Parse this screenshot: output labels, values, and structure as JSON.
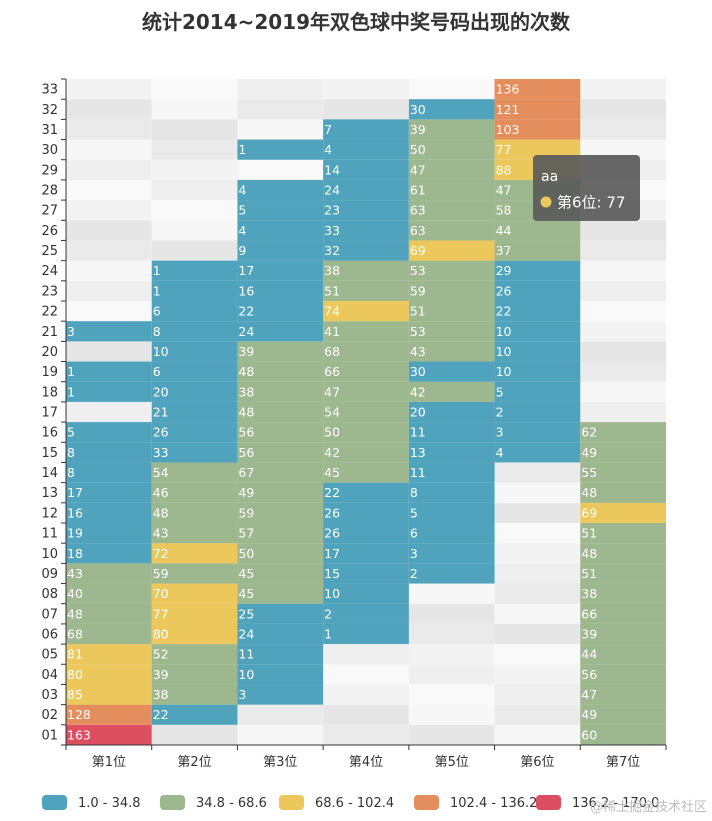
{
  "chart_data": {
    "type": "heatmap",
    "title": "统计2014~2019年双色球中奖号码出现的次数",
    "x_categories": [
      "第1位",
      "第2位",
      "第3位",
      "第4位",
      "第5位",
      "第6位",
      "第7位"
    ],
    "y_categories": [
      "01",
      "02",
      "03",
      "04",
      "05",
      "06",
      "07",
      "08",
      "09",
      "10",
      "11",
      "12",
      "13",
      "14",
      "15",
      "16",
      "17",
      "18",
      "19",
      "20",
      "21",
      "22",
      "23",
      "24",
      "25",
      "26",
      "27",
      "28",
      "29",
      "30",
      "31",
      "32",
      "33"
    ],
    "columns": [
      {
        "name": "第1位",
        "cells": [
          [
            1,
            163
          ],
          [
            2,
            128
          ],
          [
            3,
            85
          ],
          [
            4,
            80
          ],
          [
            5,
            81
          ],
          [
            6,
            68
          ],
          [
            7,
            48
          ],
          [
            8,
            40
          ],
          [
            9,
            43
          ],
          [
            10,
            18
          ],
          [
            11,
            19
          ],
          [
            12,
            16
          ],
          [
            13,
            17
          ],
          [
            14,
            8
          ],
          [
            15,
            8
          ],
          [
            16,
            5
          ],
          [
            18,
            1
          ],
          [
            19,
            1
          ],
          [
            21,
            3
          ]
        ]
      },
      {
        "name": "第2位",
        "cells": [
          [
            2,
            22
          ],
          [
            3,
            38
          ],
          [
            4,
            39
          ],
          [
            5,
            52
          ],
          [
            6,
            80
          ],
          [
            7,
            77
          ],
          [
            8,
            70
          ],
          [
            9,
            59
          ],
          [
            10,
            72
          ],
          [
            11,
            43
          ],
          [
            12,
            48
          ],
          [
            13,
            46
          ],
          [
            14,
            54
          ],
          [
            15,
            33
          ],
          [
            16,
            26
          ],
          [
            17,
            21
          ],
          [
            18,
            20
          ],
          [
            19,
            6
          ],
          [
            20,
            10
          ],
          [
            21,
            8
          ],
          [
            22,
            6
          ],
          [
            23,
            1
          ],
          [
            24,
            1
          ]
        ]
      },
      {
        "name": "第3位",
        "cells": [
          [
            3,
            3
          ],
          [
            4,
            10
          ],
          [
            5,
            11
          ],
          [
            6,
            24
          ],
          [
            7,
            25
          ],
          [
            8,
            45
          ],
          [
            9,
            45
          ],
          [
            10,
            50
          ],
          [
            11,
            57
          ],
          [
            12,
            59
          ],
          [
            13,
            49
          ],
          [
            14,
            67
          ],
          [
            15,
            56
          ],
          [
            16,
            56
          ],
          [
            17,
            48
          ],
          [
            18,
            38
          ],
          [
            19,
            48
          ],
          [
            20,
            39
          ],
          [
            21,
            24
          ],
          [
            22,
            22
          ],
          [
            23,
            16
          ],
          [
            24,
            17
          ],
          [
            25,
            9
          ],
          [
            26,
            4
          ],
          [
            27,
            5
          ],
          [
            28,
            4
          ],
          [
            30,
            1
          ]
        ]
      },
      {
        "name": "第4位",
        "cells": [
          [
            6,
            1
          ],
          [
            7,
            2
          ],
          [
            8,
            10
          ],
          [
            9,
            15
          ],
          [
            10,
            17
          ],
          [
            11,
            26
          ],
          [
            12,
            26
          ],
          [
            13,
            22
          ],
          [
            14,
            45
          ],
          [
            15,
            42
          ],
          [
            16,
            50
          ],
          [
            17,
            54
          ],
          [
            18,
            47
          ],
          [
            19,
            66
          ],
          [
            20,
            68
          ],
          [
            21,
            41
          ],
          [
            22,
            74
          ],
          [
            23,
            51
          ],
          [
            24,
            38
          ],
          [
            25,
            32
          ],
          [
            26,
            33
          ],
          [
            27,
            23
          ],
          [
            28,
            24
          ],
          [
            29,
            14
          ],
          [
            30,
            4
          ],
          [
            31,
            7
          ]
        ]
      },
      {
        "name": "第5位",
        "cells": [
          [
            9,
            2
          ],
          [
            10,
            3
          ],
          [
            11,
            6
          ],
          [
            12,
            5
          ],
          [
            13,
            8
          ],
          [
            14,
            11
          ],
          [
            15,
            13
          ],
          [
            16,
            11
          ],
          [
            17,
            20
          ],
          [
            18,
            42
          ],
          [
            19,
            30
          ],
          [
            20,
            43
          ],
          [
            21,
            53
          ],
          [
            22,
            51
          ],
          [
            23,
            59
          ],
          [
            24,
            53
          ],
          [
            25,
            69
          ],
          [
            26,
            63
          ],
          [
            27,
            63
          ],
          [
            28,
            61
          ],
          [
            29,
            47
          ],
          [
            30,
            50
          ],
          [
            31,
            39
          ],
          [
            32,
            30
          ]
        ]
      },
      {
        "name": "第6位",
        "cells": [
          [
            15,
            4
          ],
          [
            16,
            3
          ],
          [
            17,
            2
          ],
          [
            18,
            5
          ],
          [
            19,
            10
          ],
          [
            20,
            10
          ],
          [
            21,
            10
          ],
          [
            22,
            22
          ],
          [
            23,
            26
          ],
          [
            24,
            29
          ],
          [
            25,
            37
          ],
          [
            26,
            44
          ],
          [
            27,
            58
          ],
          [
            28,
            47
          ],
          [
            29,
            88
          ],
          [
            30,
            77
          ],
          [
            31,
            103
          ],
          [
            32,
            121
          ],
          [
            33,
            136
          ]
        ]
      },
      {
        "name": "第7位",
        "cells": [
          [
            1,
            60
          ],
          [
            2,
            49
          ],
          [
            3,
            47
          ],
          [
            4,
            56
          ],
          [
            5,
            44
          ],
          [
            6,
            39
          ],
          [
            7,
            66
          ],
          [
            8,
            38
          ],
          [
            9,
            51
          ],
          [
            10,
            48
          ],
          [
            11,
            51
          ],
          [
            12,
            69
          ],
          [
            13,
            48
          ],
          [
            14,
            55
          ],
          [
            15,
            49
          ],
          [
            16,
            62
          ]
        ]
      }
    ],
    "visual_map": {
      "pieces": [
        {
          "label": "1.0 - 34.8",
          "min": 1.0,
          "max": 34.8,
          "color": "#4fa3bc"
        },
        {
          "label": "34.8 - 68.6",
          "min": 34.8,
          "max": 68.6,
          "color": "#9db78f"
        },
        {
          "label": "68.6 - 102.4",
          "min": 68.6,
          "max": 102.4,
          "color": "#ebc75c"
        },
        {
          "label": "102.4 - 136.2",
          "min": 102.4,
          "max": 136.2,
          "color": "#e58e5d"
        },
        {
          "label": "136.2 - 170.0",
          "min": 136.2,
          "max": 170.0,
          "color": "#dc4e60"
        }
      ]
    },
    "tooltip": {
      "title": "aa",
      "text": "第6位: 77",
      "color": "#ebc75c"
    }
  },
  "watermark": "@稀土掘金技术社区"
}
